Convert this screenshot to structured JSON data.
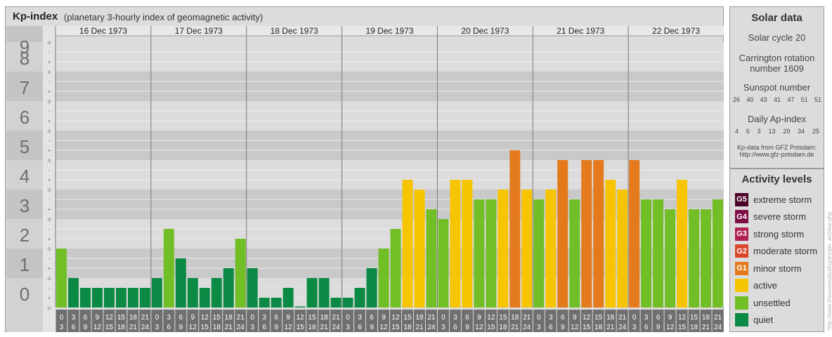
{
  "header": {
    "title": "Kp-index",
    "subtitle": "(planetary 3-hourly index of geomagnetic activity)"
  },
  "chart_data": {
    "type": "bar",
    "title": "Kp-index",
    "ylim": [
      0,
      9
    ],
    "y_ticks": [
      "0",
      "1",
      "2",
      "3",
      "4",
      "5",
      "6",
      "7",
      "8",
      "9"
    ],
    "y_minor_ticks": [
      "o",
      "+",
      "-"
    ],
    "days": [
      "16 Dec 1973",
      "17 Dec 1973",
      "18 Dec 1973",
      "19 Dec 1973",
      "20 Dec 1973",
      "21 Dec 1973",
      "22 Dec 1973"
    ],
    "intervals": [
      [
        "0",
        "3"
      ],
      [
        "3",
        "6"
      ],
      [
        "6",
        "9"
      ],
      [
        "9",
        "12"
      ],
      [
        "12",
        "15"
      ],
      [
        "15",
        "18"
      ],
      [
        "18",
        "21"
      ],
      [
        "21",
        "24"
      ]
    ],
    "values": [
      [
        2.0,
        1.0,
        0.667,
        0.667,
        0.667,
        0.667,
        0.667,
        0.667
      ],
      [
        1.0,
        2.667,
        1.667,
        1.0,
        0.667,
        1.0,
        1.333,
        2.333
      ],
      [
        1.333,
        0.333,
        0.333,
        0.667,
        0.0,
        1.0,
        1.0,
        0.333
      ],
      [
        0.333,
        0.667,
        1.333,
        2.0,
        2.667,
        4.333,
        4.0,
        3.333
      ],
      [
        3.0,
        4.333,
        4.333,
        3.667,
        3.667,
        4.0,
        5.333,
        4.0
      ],
      [
        3.667,
        4.0,
        5.0,
        3.667,
        5.0,
        5.0,
        4.333,
        4.0
      ],
      [
        5.0,
        3.667,
        3.667,
        3.333,
        4.333,
        3.333,
        3.333,
        3.667
      ]
    ],
    "colors": {
      "quiet": "#0a8a44",
      "unsettled": "#72be27",
      "active": "#f7c402",
      "minor": "#e57a1d",
      "moderate": "#d9462a",
      "strong": "#b02052",
      "severe": "#7d0c45",
      "extreme": "#4a0027"
    }
  },
  "solar": {
    "title": "Solar data",
    "cycle": "Solar cycle 20",
    "carrington_line1": "Carrington rotation",
    "carrington_line2": "number 1609",
    "sunspot_label": "Sunspot number",
    "sunspot_values": [
      "26",
      "40",
      "43",
      "41",
      "47",
      "51",
      "51"
    ],
    "ap_label": "Daily Ap-index",
    "ap_values": [
      "4",
      "6",
      "3",
      "13",
      "29",
      "34",
      "25"
    ],
    "source_line1": "Kp-data from GFZ Potsdam:",
    "source_line2": "http://www.gfz-potsdam.de"
  },
  "activity": {
    "title": "Activity levels",
    "levels": [
      {
        "badge": "G5",
        "label": "extreme storm",
        "color": "#4a0027"
      },
      {
        "badge": "G4",
        "label": "severe storm",
        "color": "#7d0c45"
      },
      {
        "badge": "G3",
        "label": "strong storm",
        "color": "#b02052"
      },
      {
        "badge": "G2",
        "label": "moderate storm",
        "color": "#d9462a"
      },
      {
        "badge": "G1",
        "label": "minor storm",
        "color": "#e57a1d"
      },
      {
        "badge": "",
        "label": "active",
        "color": "#f7c402"
      },
      {
        "badge": "",
        "label": "unsettled",
        "color": "#72be27"
      },
      {
        "badge": "",
        "label": "quiet",
        "color": "#0a8a44"
      }
    ]
  },
  "watermark": "http://www.theusereubuvfugaryspo_archive.php"
}
